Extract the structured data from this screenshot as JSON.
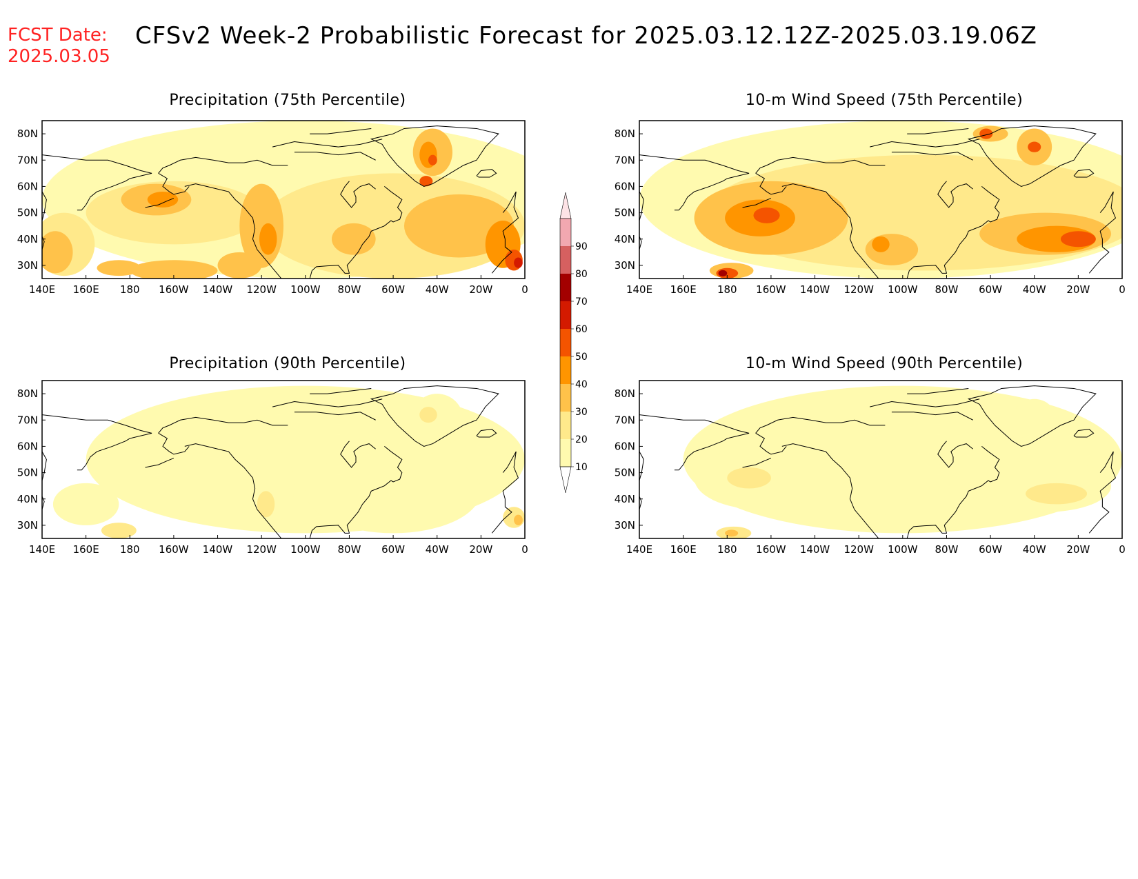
{
  "fcst_date": {
    "label": "FCST Date:",
    "value": "2025.03.05"
  },
  "title": "CFSv2 Week-2 Probabilistic Forecast for 2025.03.12.12Z-2025.03.19.06Z",
  "colors": {
    "c10": "#fffaaf",
    "c20": "#ffe98b",
    "c30": "#ffc24a",
    "c40": "#ff9500",
    "c50": "#f45400",
    "c60": "#d41a00",
    "c70": "#a30000",
    "c80": "#d66060",
    "c90": "#f2a8b0",
    "c100": "#fde3e6"
  },
  "colorbar": {
    "levels": [
      "10",
      "20",
      "30",
      "40",
      "50",
      "60",
      "70",
      "80",
      "90"
    ]
  },
  "axes": {
    "lon_labels": [
      "140E",
      "160E",
      "180",
      "160W",
      "140W",
      "120W",
      "100W",
      "80W",
      "60W",
      "40W",
      "20W",
      "0"
    ],
    "lat_labels": [
      "80N",
      "70N",
      "60N",
      "50N",
      "40N",
      "30N"
    ]
  },
  "panels": [
    {
      "id": "p1",
      "title": "Precipitation (75th Percentile)"
    },
    {
      "id": "p2",
      "title": "10-m Wind Speed (75th Percentile)"
    },
    {
      "id": "p3",
      "title": "Precipitation (90th Percentile)"
    },
    {
      "id": "p4",
      "title": "10-m Wind Speed (90th Percentile)"
    }
  ]
}
